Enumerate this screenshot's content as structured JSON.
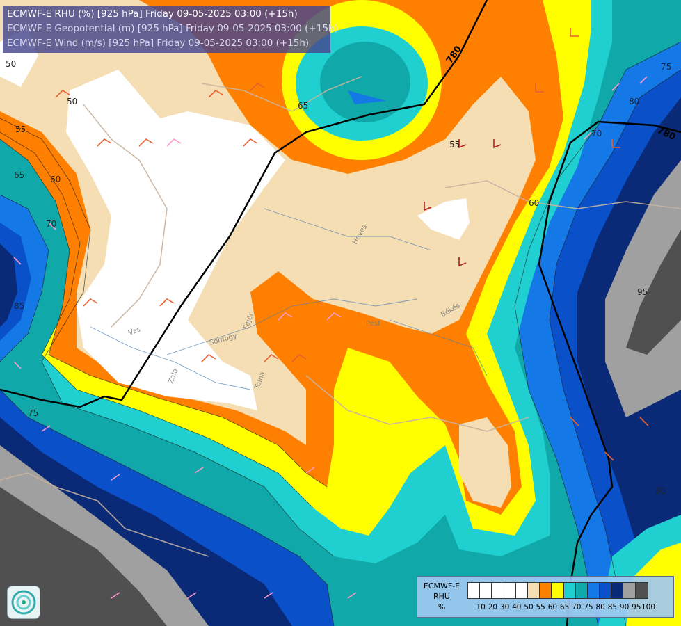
{
  "header": {
    "line1": "ECMWF-E RHU (%) [925 hPa] Friday 09-05-2025 03:00 (+15h)",
    "line2": "ECMWF-E Geopotential (m) [925 hPa] Friday 09-05-2025 03:00 (+15h)",
    "line3": "ECMWF-E Wind (m/s) [925 hPa] Friday 09-05-2025 03:00 (+15h)"
  },
  "legend": {
    "title_lines": [
      "ECMWF-E",
      "RHU",
      "%"
    ],
    "tick_labels": [
      "10",
      "20",
      "30",
      "40",
      "50",
      "55",
      "60",
      "65",
      "70",
      "75",
      "80",
      "85",
      "90",
      "95",
      "100"
    ],
    "colors": [
      "#ffffff",
      "#ffffff",
      "#ffffff",
      "#ffffff",
      "#ffffff",
      "#f5deb3",
      "#ff8000",
      "#ffff00",
      "#20d0d0",
      "#10a8a8",
      "#1478e6",
      "#0a50c8",
      "#0a2a78",
      "#a0a0a0",
      "#505050"
    ]
  },
  "geopotential_labels": [
    "780",
    "780"
  ],
  "rhu_contour_labels": [
    "50",
    "50",
    "55",
    "55",
    "60",
    "60",
    "65",
    "65",
    "70",
    "70",
    "75",
    "75",
    "80",
    "80",
    "85",
    "95"
  ],
  "region_labels": [
    "Heves",
    "Pest",
    "Békés",
    "Vas",
    "Zala",
    "Somogy",
    "Tolna",
    "Fejér"
  ],
  "colors": {
    "white": "#ffffff",
    "wheat": "#f5deb3",
    "orange": "#ff8000",
    "yellow": "#ffff00",
    "cyan": "#20d0d0",
    "teal": "#10a8a8",
    "blue": "#1478e6",
    "deep_blue": "#0a50c8",
    "navy": "#0a2a78",
    "grey": "#a0a0a0",
    "dark_grey": "#505050",
    "title_bg": "#46468c"
  }
}
